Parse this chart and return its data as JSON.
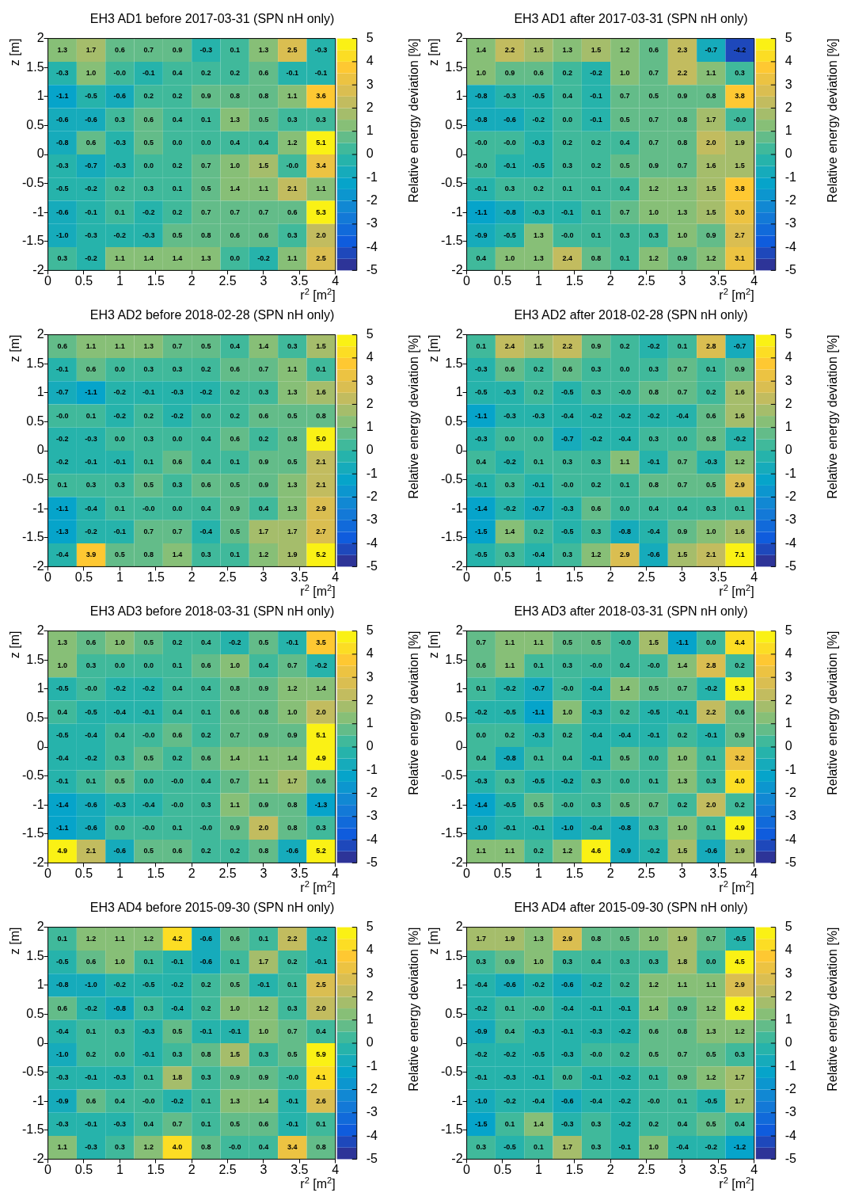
{
  "chart_data": [
    {
      "type": "heatmap",
      "title": "EH3 AD1 before 2017-03-31 (SPN nH only)",
      "xlabel": "r$^{2}$ [m$^{2}$]",
      "ylabel": "z [m]",
      "clabel": "Relative energy deviation [%]",
      "xlim": [
        0,
        4
      ],
      "xticks": [
        0,
        0.5,
        1,
        1.5,
        2,
        2.5,
        3,
        3.5,
        4
      ],
      "ylim": [
        -2,
        2
      ],
      "yticks": [
        -2,
        -1.5,
        -1,
        -0.5,
        0,
        0.5,
        1,
        1.5,
        2
      ],
      "clim": [
        -5,
        5
      ],
      "cticks": [
        -5,
        -4,
        -3,
        -2,
        -1,
        0,
        1,
        2,
        3,
        4,
        5
      ],
      "data_labels": true,
      "cells": [
        [
          1.3,
          1.7,
          0.6,
          0.7,
          0.9,
          -0.3,
          0.1,
          1.3,
          2.5,
          -0.3
        ],
        [
          -0.3,
          1.0,
          -0.0,
          -0.1,
          0.4,
          0.2,
          0.2,
          0.6,
          -0.1,
          -0.1
        ],
        [
          -1.1,
          -0.5,
          -0.6,
          0.2,
          0.2,
          0.9,
          0.8,
          0.8,
          1.1,
          3.6
        ],
        [
          -0.6,
          -0.6,
          0.3,
          0.6,
          0.4,
          0.1,
          1.3,
          0.5,
          0.3,
          0.3
        ],
        [
          -0.8,
          0.6,
          -0.3,
          0.5,
          0.0,
          0.0,
          0.4,
          0.4,
          1.2,
          5.1
        ],
        [
          -0.3,
          -0.7,
          -0.3,
          0.0,
          0.2,
          0.7,
          1.0,
          1.5,
          -0.0,
          3.4
        ],
        [
          -0.5,
          -0.2,
          0.2,
          0.3,
          0.1,
          0.5,
          1.4,
          1.1,
          2.1,
          1.1
        ],
        [
          -0.6,
          -0.1,
          0.1,
          -0.2,
          0.2,
          0.7,
          0.7,
          0.7,
          0.6,
          5.3
        ],
        [
          -1.0,
          -0.3,
          -0.2,
          -0.3,
          0.5,
          0.8,
          0.6,
          0.6,
          0.3,
          2.0
        ],
        [
          0.3,
          -0.2,
          1.1,
          1.4,
          1.4,
          1.3,
          0.0,
          -0.2,
          1.1,
          2.5
        ]
      ],
      "cell_labels": [
        [
          "1.3",
          "1.7",
          "0.6",
          "0.7",
          "0.9",
          "-0.3",
          "0.1",
          "1.3",
          "2.5",
          "-0.3"
        ],
        [
          "-0.3",
          "1.0",
          "-0.0",
          "-0.1",
          "0.4",
          "0.2",
          "0.2",
          "0.6",
          "-0.1",
          "-0.1"
        ],
        [
          "-1.1",
          "-0.5",
          "-0.6",
          "0.2",
          "0.2",
          "0.9",
          "0.8",
          "0.8",
          "1.1",
          "3.6"
        ],
        [
          "-0.6",
          "-0.6",
          "0.3",
          "0.6",
          "0.4",
          "0.1",
          "1.3",
          "0.5",
          "0.3",
          "0.3"
        ],
        [
          "-0.8",
          "0.6",
          "-0.3",
          "0.5",
          "0.0",
          "0.0",
          "0.4",
          "0.4",
          "1.2",
          "5.1"
        ],
        [
          "-0.3",
          "-0.7",
          "-0.3",
          "0.0",
          "0.2",
          "0.7",
          "1.0",
          "1.5",
          "-0.0",
          "3.4"
        ],
        [
          "-0.5",
          "-0.2",
          "0.2",
          "0.3",
          "0.1",
          "0.5",
          "1.4",
          "1.1",
          "2.1",
          "1.1"
        ],
        [
          "-0.6",
          "-0.1",
          "0.1",
          "-0.2",
          "0.2",
          "0.7",
          "0.7",
          "0.7",
          "0.6",
          "5.3"
        ],
        [
          "-1.0",
          "-0.3",
          "-0.2",
          "-0.3",
          "0.5",
          "0.8",
          "0.6",
          "0.6",
          "0.3",
          "2.0"
        ],
        [
          "0.3",
          "-0.2",
          "1.1",
          "1.4",
          "1.4",
          "1.3",
          "0.0",
          "-0.2",
          "1.1",
          "2.5"
        ]
      ]
    },
    {
      "type": "heatmap",
      "title": "EH3 AD1 after 2017-03-31 (SPN nH only)",
      "xlabel": "r$^{2}$ [m$^{2}$]",
      "ylabel": "z [m]",
      "clabel": "Relative energy deviation [%]",
      "xlim": [
        0,
        4
      ],
      "xticks": [
        0,
        0.5,
        1,
        1.5,
        2,
        2.5,
        3,
        3.5,
        4
      ],
      "ylim": [
        -2,
        2
      ],
      "yticks": [
        -2,
        -1.5,
        -1,
        -0.5,
        0,
        0.5,
        1,
        1.5,
        2
      ],
      "clim": [
        -5,
        5
      ],
      "cticks": [
        -5,
        -4,
        -3,
        -2,
        -1,
        0,
        1,
        2,
        3,
        4,
        5
      ],
      "data_labels": true,
      "cells": [
        [
          1.4,
          2.2,
          1.5,
          1.3,
          1.5,
          1.2,
          0.6,
          2.3,
          -0.7,
          -4.2
        ],
        [
          1.0,
          0.9,
          0.6,
          0.2,
          -0.2,
          1.0,
          0.7,
          2.2,
          1.1,
          0.3
        ],
        [
          -0.8,
          -0.3,
          -0.5,
          0.4,
          -0.1,
          0.7,
          0.5,
          0.9,
          0.8,
          3.8
        ],
        [
          -0.8,
          -0.6,
          -0.2,
          0.0,
          -0.1,
          0.5,
          0.7,
          0.8,
          1.7,
          -0.0
        ],
        [
          -0.0,
          -0.0,
          -0.3,
          0.2,
          0.2,
          0.4,
          0.7,
          0.8,
          2.0,
          1.9
        ],
        [
          -0.0,
          -0.1,
          -0.5,
          0.3,
          0.2,
          0.5,
          0.9,
          0.7,
          1.6,
          1.5
        ],
        [
          -0.1,
          0.3,
          0.2,
          0.1,
          0.1,
          0.4,
          1.2,
          1.3,
          1.5,
          3.8
        ],
        [
          -1.1,
          -0.8,
          -0.3,
          -0.1,
          0.1,
          0.7,
          1.0,
          1.3,
          1.5,
          3.0
        ],
        [
          -0.9,
          -0.5,
          1.3,
          -0.0,
          0.1,
          0.3,
          0.3,
          1.0,
          0.9,
          2.7
        ],
        [
          0.4,
          1.0,
          1.3,
          2.4,
          0.8,
          0.1,
          1.2,
          0.9,
          1.2,
          3.1
        ]
      ],
      "cell_labels": [
        [
          "1.4",
          "2.2",
          "1.5",
          "1.3",
          "1.5",
          "1.2",
          "0.6",
          "2.3",
          "-0.7",
          "-4.2"
        ],
        [
          "1.0",
          "0.9",
          "0.6",
          "0.2",
          "-0.2",
          "1.0",
          "0.7",
          "2.2",
          "1.1",
          "0.3"
        ],
        [
          "-0.8",
          "-0.3",
          "-0.5",
          "0.4",
          "-0.1",
          "0.7",
          "0.5",
          "0.9",
          "0.8",
          "3.8"
        ],
        [
          "-0.8",
          "-0.6",
          "-0.2",
          "0.0",
          "-0.1",
          "0.5",
          "0.7",
          "0.8",
          "1.7",
          "-0.0"
        ],
        [
          "-0.0",
          "-0.0",
          "-0.3",
          "0.2",
          "0.2",
          "0.4",
          "0.7",
          "0.8",
          "2.0",
          "1.9"
        ],
        [
          "-0.0",
          "-0.1",
          "-0.5",
          "0.3",
          "0.2",
          "0.5",
          "0.9",
          "0.7",
          "1.6",
          "1.5"
        ],
        [
          "-0.1",
          "0.3",
          "0.2",
          "0.1",
          "0.1",
          "0.4",
          "1.2",
          "1.3",
          "1.5",
          "3.8"
        ],
        [
          "-1.1",
          "-0.8",
          "-0.3",
          "-0.1",
          "0.1",
          "0.7",
          "1.0",
          "1.3",
          "1.5",
          "3.0"
        ],
        [
          "-0.9",
          "-0.5",
          "1.3",
          "-0.0",
          "0.1",
          "0.3",
          "0.3",
          "1.0",
          "0.9",
          "2.7"
        ],
        [
          "0.4",
          "1.0",
          "1.3",
          "2.4",
          "0.8",
          "0.1",
          "1.2",
          "0.9",
          "1.2",
          "3.1"
        ]
      ]
    },
    {
      "type": "heatmap",
      "title": "EH3 AD2 before 2018-02-28 (SPN nH only)",
      "xlabel": "r$^{2}$ [m$^{2}$]",
      "ylabel": "z [m]",
      "clabel": "Relative energy deviation [%]",
      "xlim": [
        0,
        4
      ],
      "xticks": [
        0,
        0.5,
        1,
        1.5,
        2,
        2.5,
        3,
        3.5,
        4
      ],
      "ylim": [
        -2,
        2
      ],
      "yticks": [
        -2,
        -1.5,
        -1,
        -0.5,
        0,
        0.5,
        1,
        1.5,
        2
      ],
      "clim": [
        -5,
        5
      ],
      "cticks": [
        -5,
        -4,
        -3,
        -2,
        -1,
        0,
        1,
        2,
        3,
        4,
        5
      ],
      "data_labels": true,
      "cells": [
        [
          0.6,
          1.1,
          1.1,
          1.3,
          0.7,
          0.5,
          0.4,
          1.4,
          0.3,
          1.5
        ],
        [
          -0.1,
          0.6,
          0.0,
          0.3,
          0.3,
          0.2,
          0.6,
          0.7,
          1.1,
          0.1
        ],
        [
          -0.7,
          -1.1,
          -0.2,
          -0.1,
          -0.3,
          -0.2,
          0.2,
          0.3,
          1.3,
          1.6
        ],
        [
          -0.0,
          0.1,
          -0.2,
          0.2,
          -0.2,
          0.0,
          0.2,
          0.6,
          0.5,
          0.8
        ],
        [
          -0.2,
          -0.3,
          0.0,
          0.3,
          0.0,
          0.4,
          0.6,
          0.2,
          0.8,
          5.0
        ],
        [
          -0.2,
          -0.1,
          -0.1,
          0.1,
          0.6,
          0.4,
          0.1,
          0.9,
          0.5,
          2.1
        ],
        [
          0.1,
          0.3,
          0.3,
          0.5,
          0.3,
          0.6,
          0.5,
          0.9,
          1.3,
          2.1
        ],
        [
          -1.1,
          -0.4,
          0.1,
          -0.0,
          0.0,
          0.4,
          0.9,
          0.4,
          1.3,
          2.9
        ],
        [
          -1.3,
          -0.2,
          -0.1,
          0.7,
          0.7,
          -0.4,
          0.5,
          1.7,
          1.7,
          2.7
        ],
        [
          -0.4,
          3.9,
          0.5,
          0.8,
          1.4,
          0.3,
          0.1,
          1.2,
          1.9,
          5.2
        ]
      ],
      "cell_labels": [
        [
          "0.6",
          "1.1",
          "1.1",
          "1.3",
          "0.7",
          "0.5",
          "0.4",
          "1.4",
          "0.3",
          "1.5"
        ],
        [
          "-0.1",
          "0.6",
          "0.0",
          "0.3",
          "0.3",
          "0.2",
          "0.6",
          "0.7",
          "1.1",
          "0.1"
        ],
        [
          "-0.7",
          "-1.1",
          "-0.2",
          "-0.1",
          "-0.3",
          "-0.2",
          "0.2",
          "0.3",
          "1.3",
          "1.6"
        ],
        [
          "-0.0",
          "0.1",
          "-0.2",
          "0.2",
          "-0.2",
          "0.0",
          "0.2",
          "0.6",
          "0.5",
          "0.8"
        ],
        [
          "-0.2",
          "-0.3",
          "0.0",
          "0.3",
          "0.0",
          "0.4",
          "0.6",
          "0.2",
          "0.8",
          "5.0"
        ],
        [
          "-0.2",
          "-0.1",
          "-0.1",
          "0.1",
          "0.6",
          "0.4",
          "0.1",
          "0.9",
          "0.5",
          "2.1"
        ],
        [
          "0.1",
          "0.3",
          "0.3",
          "0.5",
          "0.3",
          "0.6",
          "0.5",
          "0.9",
          "1.3",
          "2.1"
        ],
        [
          "-1.1",
          "-0.4",
          "0.1",
          "-0.0",
          "0.0",
          "0.4",
          "0.9",
          "0.4",
          "1.3",
          "2.9"
        ],
        [
          "-1.3",
          "-0.2",
          "-0.1",
          "0.7",
          "0.7",
          "-0.4",
          "0.5",
          "1.7",
          "1.7",
          "2.7"
        ],
        [
          "-0.4",
          "3.9",
          "0.5",
          "0.8",
          "1.4",
          "0.3",
          "0.1",
          "1.2",
          "1.9",
          "5.2"
        ]
      ]
    },
    {
      "type": "heatmap",
      "title": "EH3 AD2 after 2018-02-28 (SPN nH only)",
      "xlabel": "r$^{2}$ [m$^{2}$]",
      "ylabel": "z [m]",
      "clabel": "Relative energy deviation [%]",
      "xlim": [
        0,
        4
      ],
      "xticks": [
        0,
        0.5,
        1,
        1.5,
        2,
        2.5,
        3,
        3.5,
        4
      ],
      "ylim": [
        -2,
        2
      ],
      "yticks": [
        -2,
        -1.5,
        -1,
        -0.5,
        0,
        0.5,
        1,
        1.5,
        2
      ],
      "clim": [
        -5,
        5
      ],
      "cticks": [
        -5,
        -4,
        -3,
        -2,
        -1,
        0,
        1,
        2,
        3,
        4,
        5
      ],
      "data_labels": true,
      "cells": [
        [
          0.1,
          2.4,
          1.5,
          2.2,
          0.9,
          0.2,
          -0.2,
          0.1,
          2.8,
          -0.7
        ],
        [
          -0.3,
          0.6,
          0.2,
          0.6,
          0.3,
          0.0,
          0.3,
          0.7,
          0.1,
          0.9
        ],
        [
          -0.5,
          -0.3,
          0.2,
          -0.5,
          0.3,
          -0.0,
          0.8,
          0.7,
          0.2,
          1.6
        ],
        [
          -1.1,
          -0.3,
          -0.3,
          -0.4,
          -0.2,
          -0.2,
          -0.2,
          -0.4,
          0.6,
          1.6
        ],
        [
          -0.3,
          0.0,
          0.0,
          -0.7,
          -0.2,
          -0.4,
          0.3,
          0.0,
          0.8,
          -0.2
        ],
        [
          0.4,
          -0.2,
          0.1,
          0.3,
          0.3,
          1.1,
          -0.1,
          0.7,
          -0.3,
          1.2
        ],
        [
          -0.1,
          0.3,
          -0.1,
          -0.0,
          0.2,
          0.1,
          0.8,
          0.7,
          0.5,
          2.9
        ],
        [
          -1.4,
          -0.2,
          -0.7,
          -0.3,
          0.6,
          0.0,
          0.4,
          0.4,
          0.3,
          0.1
        ],
        [
          -1.5,
          1.4,
          0.2,
          -0.5,
          0.3,
          -0.8,
          -0.4,
          0.9,
          1.0,
          1.6
        ],
        [
          -0.5,
          0.3,
          -0.4,
          0.3,
          1.2,
          2.9,
          -0.6,
          1.5,
          2.1,
          7.1
        ]
      ],
      "cell_labels": [
        [
          "0.1",
          "2.4",
          "1.5",
          "2.2",
          "0.9",
          "0.2",
          "-0.2",
          "0.1",
          "2.8",
          "-0.7"
        ],
        [
          "-0.3",
          "0.6",
          "0.2",
          "0.6",
          "0.3",
          "0.0",
          "0.3",
          "0.7",
          "0.1",
          "0.9"
        ],
        [
          "-0.5",
          "-0.3",
          "0.2",
          "-0.5",
          "0.3",
          "-0.0",
          "0.8",
          "0.7",
          "0.2",
          "1.6"
        ],
        [
          "-1.1",
          "-0.3",
          "-0.3",
          "-0.4",
          "-0.2",
          "-0.2",
          "-0.2",
          "-0.4",
          "0.6",
          "1.6"
        ],
        [
          "-0.3",
          "0.0",
          "0.0",
          "-0.7",
          "-0.2",
          "-0.4",
          "0.3",
          "0.0",
          "0.8",
          "-0.2"
        ],
        [
          "0.4",
          "-0.2",
          "0.1",
          "0.3",
          "0.3",
          "1.1",
          "-0.1",
          "0.7",
          "-0.3",
          "1.2"
        ],
        [
          "-0.1",
          "0.3",
          "-0.1",
          "-0.0",
          "0.2",
          "0.1",
          "0.8",
          "0.7",
          "0.5",
          "2.9"
        ],
        [
          "-1.4",
          "-0.2",
          "-0.7",
          "-0.3",
          "0.6",
          "0.0",
          "0.4",
          "0.4",
          "0.3",
          "0.1"
        ],
        [
          "-1.5",
          "1.4",
          "0.2",
          "-0.5",
          "0.3",
          "-0.8",
          "-0.4",
          "0.9",
          "1.0",
          "1.6"
        ],
        [
          "-0.5",
          "0.3",
          "-0.4",
          "0.3",
          "1.2",
          "2.9",
          "-0.6",
          "1.5",
          "2.1",
          "7.1"
        ]
      ]
    },
    {
      "type": "heatmap",
      "title": "EH3 AD3 before 2018-03-31 (SPN nH only)",
      "xlabel": "r$^{2}$ [m$^{2}$]",
      "ylabel": "z [m]",
      "clabel": "Relative energy deviation [%]",
      "xlim": [
        0,
        4
      ],
      "xticks": [
        0,
        0.5,
        1,
        1.5,
        2,
        2.5,
        3,
        3.5,
        4
      ],
      "ylim": [
        -2,
        2
      ],
      "yticks": [
        -2,
        -1.5,
        -1,
        -0.5,
        0,
        0.5,
        1,
        1.5,
        2
      ],
      "clim": [
        -5,
        5
      ],
      "cticks": [
        -5,
        -4,
        -3,
        -2,
        -1,
        0,
        1,
        2,
        3,
        4,
        5
      ],
      "data_labels": true,
      "cells": [
        [
          1.3,
          0.6,
          1.0,
          0.5,
          0.2,
          0.4,
          -0.2,
          0.5,
          -0.1,
          3.5
        ],
        [
          1.0,
          0.3,
          0.0,
          0.0,
          0.1,
          0.6,
          1.0,
          0.4,
          0.7,
          -0.2
        ],
        [
          -0.5,
          -0.0,
          -0.2,
          -0.2,
          0.4,
          0.4,
          0.8,
          0.9,
          1.2,
          1.4
        ],
        [
          0.4,
          -0.5,
          -0.4,
          -0.1,
          0.4,
          0.1,
          0.6,
          0.8,
          1.0,
          2.0
        ],
        [
          -0.5,
          -0.4,
          0.4,
          -0.0,
          0.6,
          0.2,
          0.7,
          0.9,
          0.9,
          5.1
        ],
        [
          -0.4,
          -0.2,
          0.3,
          0.5,
          0.2,
          0.6,
          1.4,
          1.1,
          1.4,
          4.9
        ],
        [
          -0.1,
          0.1,
          0.5,
          0.0,
          -0.0,
          0.4,
          0.7,
          1.1,
          1.7,
          0.6
        ],
        [
          -1.4,
          -0.6,
          -0.3,
          -0.4,
          -0.0,
          0.3,
          1.1,
          0.9,
          0.8,
          -1.3
        ],
        [
          -1.1,
          -0.6,
          0.0,
          -0.0,
          0.1,
          -0.0,
          0.9,
          2.0,
          0.8,
          0.3
        ],
        [
          4.9,
          2.1,
          -0.6,
          0.5,
          0.6,
          0.2,
          0.2,
          0.8,
          -0.6,
          5.2
        ]
      ],
      "cell_labels": [
        [
          "1.3",
          "0.6",
          "1.0",
          "0.5",
          "0.2",
          "0.4",
          "-0.2",
          "0.5",
          "-0.1",
          "3.5"
        ],
        [
          "1.0",
          "0.3",
          "0.0",
          "0.0",
          "0.1",
          "0.6",
          "1.0",
          "0.4",
          "0.7",
          "-0.2"
        ],
        [
          "-0.5",
          "-0.0",
          "-0.2",
          "-0.2",
          "0.4",
          "0.4",
          "0.8",
          "0.9",
          "1.2",
          "1.4"
        ],
        [
          "0.4",
          "-0.5",
          "-0.4",
          "-0.1",
          "0.4",
          "0.1",
          "0.6",
          "0.8",
          "1.0",
          "2.0"
        ],
        [
          "-0.5",
          "-0.4",
          "0.4",
          "-0.0",
          "0.6",
          "0.2",
          "0.7",
          "0.9",
          "0.9",
          "5.1"
        ],
        [
          "-0.4",
          "-0.2",
          "0.3",
          "0.5",
          "0.2",
          "0.6",
          "1.4",
          "1.1",
          "1.4",
          "4.9"
        ],
        [
          "-0.1",
          "0.1",
          "0.5",
          "0.0",
          "-0.0",
          "0.4",
          "0.7",
          "1.1",
          "1.7",
          "0.6"
        ],
        [
          "-1.4",
          "-0.6",
          "-0.3",
          "-0.4",
          "-0.0",
          "0.3",
          "1.1",
          "0.9",
          "0.8",
          "-1.3"
        ],
        [
          "-1.1",
          "-0.6",
          "0.0",
          "-0.0",
          "0.1",
          "-0.0",
          "0.9",
          "2.0",
          "0.8",
          "0.3"
        ],
        [
          "4.9",
          "2.1",
          "-0.6",
          "0.5",
          "0.6",
          "0.2",
          "0.2",
          "0.8",
          "-0.6",
          "5.2"
        ]
      ]
    },
    {
      "type": "heatmap",
      "title": "EH3 AD3 after 2018-03-31 (SPN nH only)",
      "xlabel": "r$^{2}$ [m$^{2}$]",
      "ylabel": "z [m]",
      "clabel": "Relative energy deviation [%]",
      "xlim": [
        0,
        4
      ],
      "xticks": [
        0,
        0.5,
        1,
        1.5,
        2,
        2.5,
        3,
        3.5,
        4
      ],
      "ylim": [
        -2,
        2
      ],
      "yticks": [
        -2,
        -1.5,
        -1,
        -0.5,
        0,
        0.5,
        1,
        1.5,
        2
      ],
      "clim": [
        -5,
        5
      ],
      "cticks": [
        -5,
        -4,
        -3,
        -2,
        -1,
        0,
        1,
        2,
        3,
        4,
        5
      ],
      "data_labels": true,
      "cells": [
        [
          0.7,
          1.1,
          1.1,
          0.5,
          0.5,
          -0.0,
          1.5,
          -1.1,
          0.0,
          4.4
        ],
        [
          0.6,
          1.1,
          0.1,
          0.3,
          -0.0,
          0.4,
          -0.0,
          1.4,
          2.8,
          0.2
        ],
        [
          0.1,
          -0.2,
          -0.7,
          -0.0,
          -0.4,
          1.4,
          0.5,
          0.7,
          -0.2,
          5.3
        ],
        [
          -0.2,
          -0.5,
          -1.1,
          1.0,
          -0.3,
          0.2,
          -0.5,
          -0.1,
          2.2,
          0.6
        ],
        [
          0.0,
          0.2,
          -0.3,
          0.2,
          -0.4,
          -0.4,
          -0.1,
          0.2,
          -0.1,
          0.9
        ],
        [
          0.4,
          -0.8,
          0.1,
          0.4,
          -0.1,
          0.5,
          0.0,
          1.0,
          0.1,
          3.2
        ],
        [
          -0.3,
          0.3,
          -0.5,
          -0.2,
          0.3,
          0.0,
          0.1,
          1.3,
          0.3,
          4.0
        ],
        [
          -1.4,
          -0.5,
          0.5,
          -0.0,
          0.3,
          0.5,
          0.7,
          0.2,
          2.0,
          0.2
        ],
        [
          -1.0,
          -0.1,
          -0.1,
          -1.0,
          -0.4,
          -0.8,
          0.3,
          1.0,
          0.1,
          4.9
        ],
        [
          1.1,
          1.1,
          0.2,
          1.2,
          4.6,
          -0.9,
          -0.2,
          1.5,
          -0.6,
          1.9
        ]
      ],
      "cell_labels": [
        [
          "0.7",
          "1.1",
          "1.1",
          "0.5",
          "0.5",
          "-0.0",
          "1.5",
          "-1.1",
          "0.0",
          "4.4"
        ],
        [
          "0.6",
          "1.1",
          "0.1",
          "0.3",
          "-0.0",
          "0.4",
          "-0.0",
          "1.4",
          "2.8",
          "0.2"
        ],
        [
          "0.1",
          "-0.2",
          "-0.7",
          "-0.0",
          "-0.4",
          "1.4",
          "0.5",
          "0.7",
          "-0.2",
          "5.3"
        ],
        [
          "-0.2",
          "-0.5",
          "-1.1",
          "1.0",
          "-0.3",
          "0.2",
          "-0.5",
          "-0.1",
          "2.2",
          "0.6"
        ],
        [
          "0.0",
          "0.2",
          "-0.3",
          "0.2",
          "-0.4",
          "-0.4",
          "-0.1",
          "0.2",
          "-0.1",
          "0.9"
        ],
        [
          "0.4",
          "-0.8",
          "0.1",
          "0.4",
          "-0.1",
          "0.5",
          "0.0",
          "1.0",
          "0.1",
          "3.2"
        ],
        [
          "-0.3",
          "0.3",
          "-0.5",
          "-0.2",
          "0.3",
          "0.0",
          "0.1",
          "1.3",
          "0.3",
          "4.0"
        ],
        [
          "-1.4",
          "-0.5",
          "0.5",
          "-0.0",
          "0.3",
          "0.5",
          "0.7",
          "0.2",
          "2.0",
          "0.2"
        ],
        [
          "-1.0",
          "-0.1",
          "-0.1",
          "-1.0",
          "-0.4",
          "-0.8",
          "0.3",
          "1.0",
          "0.1",
          "4.9"
        ],
        [
          "1.1",
          "1.1",
          "0.2",
          "1.2",
          "4.6",
          "-0.9",
          "-0.2",
          "1.5",
          "-0.6",
          "1.9"
        ]
      ]
    },
    {
      "type": "heatmap",
      "title": "EH3 AD4 before 2015-09-30 (SPN nH only)",
      "xlabel": "r$^{2}$ [m$^{2}$]",
      "ylabel": "z [m]",
      "clabel": "Relative energy deviation [%]",
      "xlim": [
        0,
        4
      ],
      "xticks": [
        0,
        0.5,
        1,
        1.5,
        2,
        2.5,
        3,
        3.5,
        4
      ],
      "ylim": [
        -2,
        2
      ],
      "yticks": [
        -2,
        -1.5,
        -1,
        -0.5,
        0,
        0.5,
        1,
        1.5,
        2
      ],
      "clim": [
        -5,
        5
      ],
      "cticks": [
        -5,
        -4,
        -3,
        -2,
        -1,
        0,
        1,
        2,
        3,
        4,
        5
      ],
      "data_labels": true,
      "cells": [
        [
          0.1,
          1.2,
          1.1,
          1.2,
          4.2,
          -0.6,
          0.6,
          0.1,
          2.2,
          -0.2
        ],
        [
          -0.5,
          0.6,
          1.0,
          0.1,
          -0.1,
          -0.6,
          0.1,
          1.7,
          0.2,
          -0.1
        ],
        [
          -0.8,
          -1.0,
          -0.2,
          -0.5,
          -0.2,
          0.2,
          0.5,
          -0.1,
          0.1,
          2.5
        ],
        [
          0.6,
          -0.2,
          -0.8,
          0.3,
          -0.4,
          0.2,
          1.0,
          1.2,
          0.3,
          2.0
        ],
        [
          -0.4,
          0.1,
          0.3,
          -0.3,
          0.5,
          -0.1,
          -0.1,
          1.0,
          0.7,
          0.4
        ],
        [
          -1.0,
          0.2,
          0.0,
          -0.1,
          0.3,
          0.8,
          1.5,
          0.3,
          0.5,
          5.9
        ],
        [
          -0.3,
          -0.1,
          -0.3,
          0.1,
          1.8,
          0.3,
          0.9,
          0.9,
          -0.0,
          4.1
        ],
        [
          -0.9,
          0.6,
          0.4,
          -0.0,
          -0.2,
          0.1,
          1.3,
          1.4,
          -0.1,
          2.6
        ],
        [
          -0.3,
          -0.1,
          -0.3,
          0.4,
          0.7,
          0.1,
          0.5,
          0.6,
          -0.1,
          0.1
        ],
        [
          1.1,
          -0.3,
          0.3,
          1.2,
          4.0,
          0.8,
          -0.0,
          0.4,
          3.4,
          0.8
        ]
      ],
      "cell_labels": [
        [
          "0.1",
          "1.2",
          "1.1",
          "1.2",
          "4.2",
          "-0.6",
          "0.6",
          "0.1",
          "2.2",
          "-0.2"
        ],
        [
          "-0.5",
          "0.6",
          "1.0",
          "0.1",
          "-0.1",
          "-0.6",
          "0.1",
          "1.7",
          "0.2",
          "-0.1"
        ],
        [
          "-0.8",
          "-1.0",
          "-0.2",
          "-0.5",
          "-0.2",
          "0.2",
          "0.5",
          "-0.1",
          "0.1",
          "2.5"
        ],
        [
          "0.6",
          "-0.2",
          "-0.8",
          "0.3",
          "-0.4",
          "0.2",
          "1.0",
          "1.2",
          "0.3",
          "2.0"
        ],
        [
          "-0.4",
          "0.1",
          "0.3",
          "-0.3",
          "0.5",
          "-0.1",
          "-0.1",
          "1.0",
          "0.7",
          "0.4"
        ],
        [
          "-1.0",
          "0.2",
          "0.0",
          "-0.1",
          "0.3",
          "0.8",
          "1.5",
          "0.3",
          "0.5",
          "5.9"
        ],
        [
          "-0.3",
          "-0.1",
          "-0.3",
          "0.1",
          "1.8",
          "0.3",
          "0.9",
          "0.9",
          "-0.0",
          "4.1"
        ],
        [
          "-0.9",
          "0.6",
          "0.4",
          "-0.0",
          "-0.2",
          "0.1",
          "1.3",
          "1.4",
          "-0.1",
          "2.6"
        ],
        [
          "-0.3",
          "-0.1",
          "-0.3",
          "0.4",
          "0.7",
          "0.1",
          "0.5",
          "0.6",
          "-0.1",
          "0.1"
        ],
        [
          "1.1",
          "-0.3",
          "0.3",
          "1.2",
          "4.0",
          "0.8",
          "-0.0",
          "0.4",
          "3.4",
          "0.8"
        ]
      ]
    },
    {
      "type": "heatmap",
      "title": "EH3 AD4 after 2015-09-30 (SPN nH only)",
      "xlabel": "r$^{2}$ [m$^{2}$]",
      "ylabel": "z [m]",
      "clabel": "Relative energy deviation [%]",
      "xlim": [
        0,
        4
      ],
      "xticks": [
        0,
        0.5,
        1,
        1.5,
        2,
        2.5,
        3,
        3.5,
        4
      ],
      "ylim": [
        -2,
        2
      ],
      "yticks": [
        -2,
        -1.5,
        -1,
        -0.5,
        0,
        0.5,
        1,
        1.5,
        2
      ],
      "clim": [
        -5,
        5
      ],
      "cticks": [
        -5,
        -4,
        -3,
        -2,
        -1,
        0,
        1,
        2,
        3,
        4,
        5
      ],
      "data_labels": true,
      "cells": [
        [
          1.7,
          1.9,
          1.3,
          2.9,
          0.8,
          0.5,
          1.0,
          1.9,
          0.7,
          -0.5
        ],
        [
          0.3,
          0.9,
          1.0,
          0.3,
          0.4,
          0.3,
          0.3,
          1.8,
          0.0,
          4.5
        ],
        [
          -0.4,
          -0.6,
          -0.2,
          -0.6,
          -0.2,
          0.2,
          1.2,
          1.1,
          1.1,
          2.9
        ],
        [
          -0.2,
          0.1,
          -0.0,
          -0.4,
          -0.1,
          -0.1,
          1.4,
          0.9,
          1.2,
          6.2
        ],
        [
          -0.9,
          0.4,
          -0.3,
          -0.1,
          -0.3,
          -0.2,
          0.6,
          0.8,
          1.3,
          1.2
        ],
        [
          -0.2,
          -0.2,
          -0.5,
          -0.3,
          -0.0,
          0.2,
          0.5,
          0.7,
          0.5,
          0.3
        ],
        [
          -0.1,
          -0.3,
          -0.1,
          0.0,
          -0.1,
          -0.2,
          0.1,
          0.9,
          1.2,
          1.7
        ],
        [
          -1.0,
          -0.2,
          -0.4,
          -0.6,
          -0.4,
          -0.2,
          -0.0,
          0.1,
          -0.5,
          1.7
        ],
        [
          -1.5,
          0.1,
          1.4,
          -0.3,
          0.3,
          -0.2,
          0.2,
          0.4,
          0.5,
          0.4
        ],
        [
          0.3,
          -0.5,
          0.1,
          1.7,
          0.3,
          -0.1,
          1.0,
          -0.4,
          -0.2,
          -1.2
        ]
      ],
      "cell_labels": [
        [
          "1.7",
          "1.9",
          "1.3",
          "2.9",
          "0.8",
          "0.5",
          "1.0",
          "1.9",
          "0.7",
          "-0.5"
        ],
        [
          "0.3",
          "0.9",
          "1.0",
          "0.3",
          "0.4",
          "0.3",
          "0.3",
          "1.8",
          "0.0",
          "4.5"
        ],
        [
          "-0.4",
          "-0.6",
          "-0.2",
          "-0.6",
          "-0.2",
          "0.2",
          "1.2",
          "1.1",
          "1.1",
          "2.9"
        ],
        [
          "-0.2",
          "0.1",
          "-0.0",
          "-0.4",
          "-0.1",
          "-0.1",
          "1.4",
          "0.9",
          "1.2",
          "6.2"
        ],
        [
          "-0.9",
          "0.4",
          "-0.3",
          "-0.1",
          "-0.3",
          "-0.2",
          "0.6",
          "0.8",
          "1.3",
          "1.2"
        ],
        [
          "-0.2",
          "-0.2",
          "-0.5",
          "-0.3",
          "-0.0",
          "0.2",
          "0.5",
          "0.7",
          "0.5",
          "0.3"
        ],
        [
          "-0.1",
          "-0.3",
          "-0.1",
          "0.0",
          "-0.1",
          "-0.2",
          "0.1",
          "0.9",
          "1.2",
          "1.7"
        ],
        [
          "-1.0",
          "-0.2",
          "-0.4",
          "-0.6",
          "-0.4",
          "-0.2",
          "-0.0",
          "0.1",
          "-0.5",
          "1.7"
        ],
        [
          "-1.5",
          "0.1",
          "1.4",
          "-0.3",
          "0.3",
          "-0.2",
          "0.2",
          "0.4",
          "0.5",
          "0.4"
        ],
        [
          "0.3",
          "-0.5",
          "0.1",
          "1.7",
          "0.3",
          "-0.1",
          "1.0",
          "-0.4",
          "-0.2",
          "-1.2"
        ]
      ]
    }
  ]
}
